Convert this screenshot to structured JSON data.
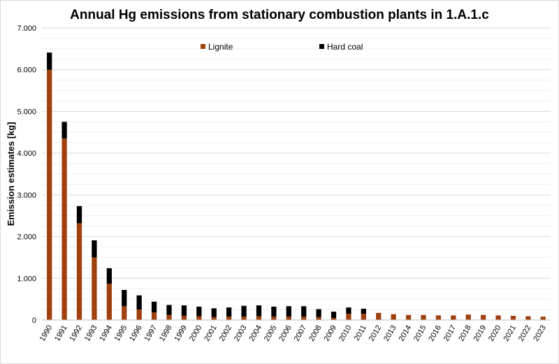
{
  "chart_data": {
    "type": "bar",
    "stacked": true,
    "title": "Annual Hg emissions from stationary combustion plants in 1.A.1.c",
    "xlabel": "",
    "ylabel": "Emission estimates [kg]",
    "ylim": [
      0,
      7000
    ],
    "yticks": [
      0,
      1000,
      2000,
      3000,
      4000,
      5000,
      6000,
      7000
    ],
    "ytick_labels": [
      "0",
      "1.000",
      "2.000",
      "3.000",
      "4.000",
      "5.000",
      "6.000",
      "7.000"
    ],
    "grid": true,
    "legend_position": "top-center",
    "categories": [
      "1990",
      "1991",
      "1992",
      "1993",
      "1994",
      "1995",
      "1996",
      "1997",
      "1998",
      "1999",
      "2000",
      "2001",
      "2002",
      "2003",
      "2004",
      "2005",
      "2006",
      "2007",
      "2008",
      "2009",
      "2010",
      "2011",
      "2012",
      "2013",
      "2014",
      "2015",
      "2016",
      "2017",
      "2018",
      "2019",
      "2020",
      "2021",
      "2022",
      "2023"
    ],
    "series": [
      {
        "name": "Lignite",
        "color": "#a0400e",
        "values": [
          6000,
          4350,
          2320,
          1500,
          870,
          330,
          250,
          180,
          120,
          100,
          90,
          70,
          80,
          80,
          90,
          80,
          80,
          80,
          70,
          50,
          150,
          150,
          170,
          140,
          120,
          120,
          110,
          110,
          130,
          120,
          110,
          100,
          90,
          80
        ]
      },
      {
        "name": "Hard coal",
        "color": "#000000",
        "values": [
          410,
          400,
          410,
          410,
          370,
          390,
          340,
          260,
          240,
          250,
          230,
          210,
          220,
          260,
          260,
          240,
          250,
          250,
          190,
          150,
          150,
          120,
          0,
          0,
          0,
          0,
          0,
          0,
          0,
          0,
          0,
          0,
          0,
          0
        ]
      }
    ]
  }
}
